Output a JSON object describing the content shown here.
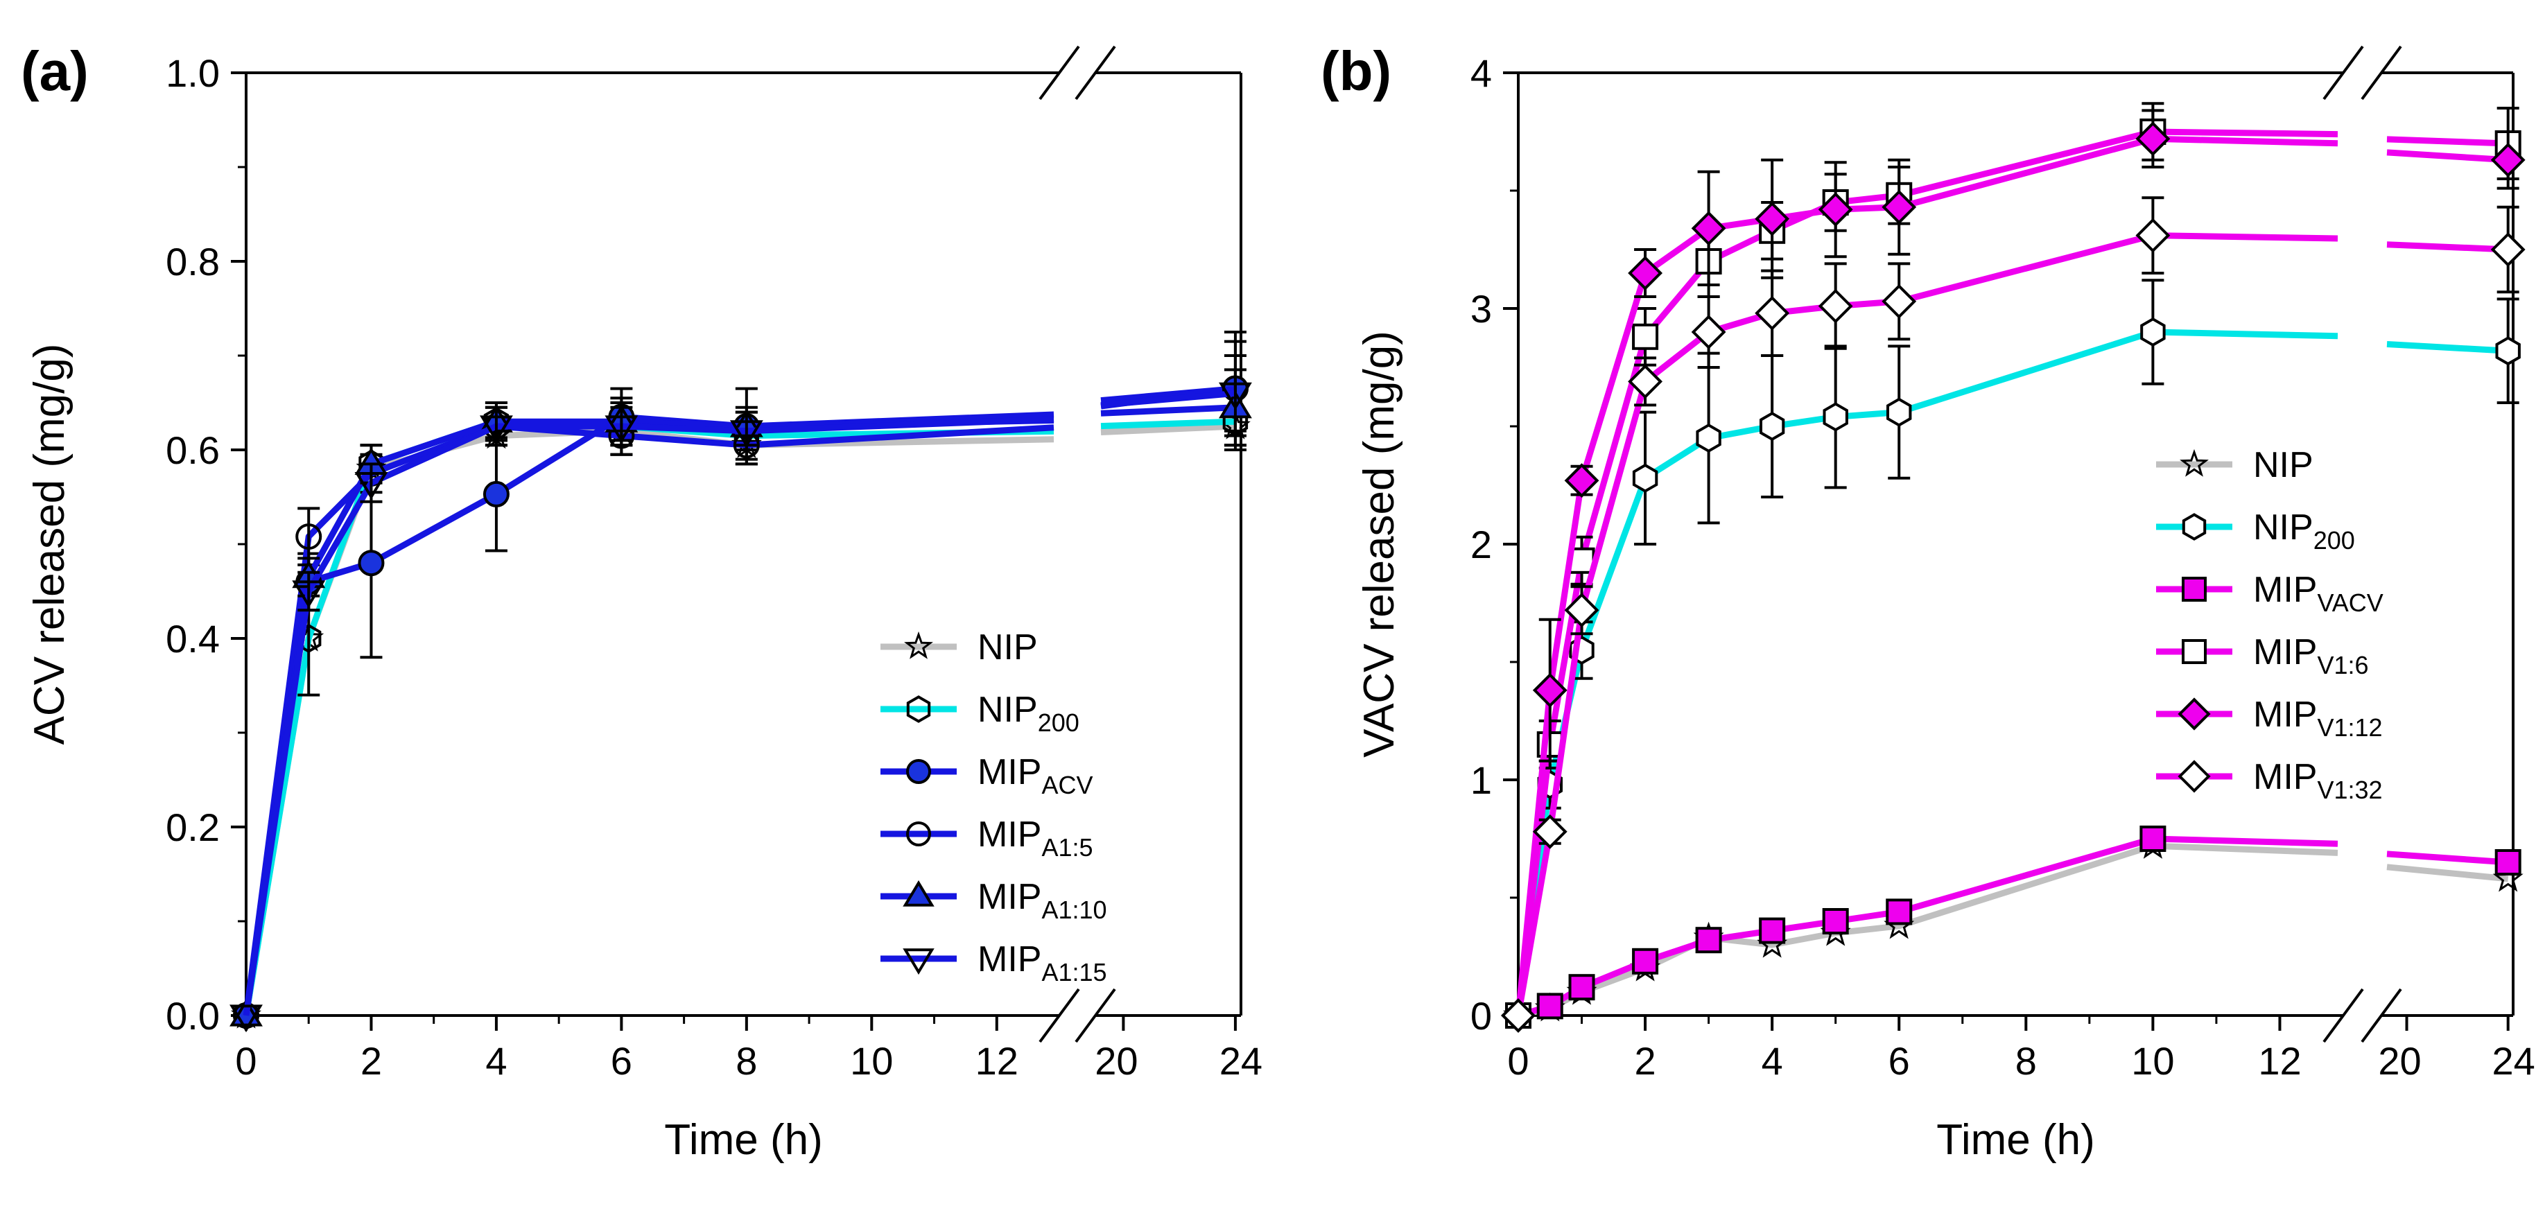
{
  "chart_data": [
    {
      "panel_label": "(a)",
      "type": "line",
      "xlabel": "Time (h)",
      "ylabel": "ACV released (mg/g)",
      "ylim": [
        0,
        1.0
      ],
      "xlim": [
        0,
        24
      ],
      "x_axis_break": [
        13,
        19
      ],
      "xtick_labels": [
        "0",
        "2",
        "4",
        "6",
        "8",
        "10",
        "12",
        "20",
        "24"
      ],
      "ytick_labels": [
        "0.0",
        "0.2",
        "0.4",
        "0.6",
        "0.8",
        "1.0"
      ],
      "legend_position": "bottom-right",
      "series": [
        {
          "name": "NIP",
          "sub": "",
          "color": "#c0c0c0",
          "marker": "star",
          "fill": "none",
          "x": [
            0,
            1,
            2,
            4,
            6,
            8,
            24
          ],
          "y": [
            0,
            0.4,
            0.58,
            0.615,
            0.62,
            0.605,
            0.625
          ]
        },
        {
          "name": "NIP",
          "sub": "200",
          "color": "#00e5e5",
          "marker": "hexagon",
          "fill": "none",
          "x": [
            0,
            1,
            2,
            4,
            6,
            8,
            24
          ],
          "y": [
            0,
            0.4,
            0.585,
            0.63,
            0.625,
            0.615,
            0.63
          ],
          "err": [
            0,
            0.06,
            0.02,
            0.02,
            0.03,
            0.025,
            0.03
          ]
        },
        {
          "name": "MIP",
          "sub": "ACV",
          "color": "#1515e0",
          "marker": "circle",
          "fill": "#1a33dd",
          "x": [
            0,
            1,
            2,
            4,
            6,
            8,
            24
          ],
          "y": [
            0,
            0.46,
            0.48,
            0.553,
            0.635,
            0.625,
            0.665
          ],
          "err": [
            0,
            0.03,
            0.1,
            0.06,
            0.03,
            0.04,
            0.06
          ]
        },
        {
          "name": "MIP",
          "sub": "A1:5",
          "color": "#1515e0",
          "marker": "circle",
          "fill": "none",
          "x": [
            0,
            1,
            2,
            4,
            6,
            8,
            24
          ],
          "y": [
            0,
            0.508,
            0.575,
            0.625,
            0.615,
            0.605,
            0.665
          ],
          "err": [
            0,
            0.03,
            0.02,
            0.02,
            0.02,
            0.02,
            0.05
          ]
        },
        {
          "name": "MIP",
          "sub": "A1:10",
          "color": "#1515e0",
          "marker": "triangle-up",
          "fill": "#1a33dd",
          "x": [
            0,
            1,
            2,
            4,
            6,
            8,
            24
          ],
          "y": [
            0,
            0.465,
            0.585,
            0.63,
            0.63,
            0.625,
            0.645
          ],
          "err": [
            0,
            0.02,
            0.02,
            0.02,
            0.02,
            0.02,
            0.04
          ]
        },
        {
          "name": "MIP",
          "sub": "A1:15",
          "color": "#1515e0",
          "marker": "triangle-down",
          "fill": "none",
          "x": [
            0,
            1,
            2,
            4,
            6,
            8,
            24
          ],
          "y": [
            0,
            0.45,
            0.565,
            0.625,
            0.625,
            0.62,
            0.66
          ],
          "err": [
            0,
            0.02,
            0.02,
            0.02,
            0.02,
            0.02,
            0.04
          ]
        }
      ]
    },
    {
      "panel_label": "(b)",
      "type": "line",
      "xlabel": "Time (h)",
      "ylabel": "VACV released (mg/g)",
      "ylim": [
        0,
        4
      ],
      "xlim": [
        0,
        24
      ],
      "x_axis_break": [
        13,
        19
      ],
      "xtick_labels": [
        "0",
        "2",
        "4",
        "6",
        "8",
        "10",
        "12",
        "20",
        "24"
      ],
      "ytick_labels": [
        "0",
        "1",
        "2",
        "3",
        "4"
      ],
      "legend_position": "right",
      "series": [
        {
          "name": "NIP",
          "sub": "",
          "color": "#c0c0c0",
          "marker": "star",
          "fill": "none",
          "x": [
            0,
            0.5,
            1,
            2,
            3,
            4,
            5,
            6,
            10,
            24
          ],
          "y": [
            0,
            0.03,
            0.1,
            0.2,
            0.33,
            0.3,
            0.35,
            0.38,
            0.72,
            0.58
          ]
        },
        {
          "name": "NIP",
          "sub": "200",
          "color": "#00e5e5",
          "marker": "hexagon",
          "fill": "#ffffff",
          "x": [
            0,
            0.5,
            1,
            2,
            3,
            4,
            5,
            6,
            10,
            24
          ],
          "y": [
            0,
            0.98,
            1.55,
            2.28,
            2.45,
            2.5,
            2.54,
            2.56,
            2.9,
            2.82
          ],
          "err": [
            0,
            0.1,
            0.12,
            0.28,
            0.36,
            0.3,
            0.3,
            0.28,
            0.22,
            0.22
          ]
        },
        {
          "name": "MIP",
          "sub": "VACV",
          "color": "#ee00ee",
          "marker": "square",
          "fill": "#ee00ee",
          "x": [
            0,
            0.5,
            1,
            2,
            3,
            4,
            5,
            6,
            10,
            24
          ],
          "y": [
            0,
            0.04,
            0.12,
            0.23,
            0.32,
            0.36,
            0.4,
            0.44,
            0.75,
            0.65
          ]
        },
        {
          "name": "MIP",
          "sub": "V1:6",
          "color": "#ee00ee",
          "marker": "square",
          "fill": "#ffffff",
          "x": [
            0,
            0.5,
            1,
            2,
            3,
            4,
            5,
            6,
            10,
            24
          ],
          "y": [
            0,
            1.15,
            1.93,
            2.88,
            3.2,
            3.33,
            3.45,
            3.48,
            3.75,
            3.7
          ],
          "err": [
            0,
            0.1,
            0.1,
            0.12,
            0.15,
            0.12,
            0.12,
            0.12,
            0.12,
            0.15
          ]
        },
        {
          "name": "MIP",
          "sub": "V1:12",
          "color": "#ee00ee",
          "marker": "diamond",
          "fill": "#ee00ee",
          "x": [
            0,
            0.5,
            1,
            2,
            3,
            4,
            5,
            6,
            10,
            24
          ],
          "y": [
            0,
            1.38,
            2.27,
            3.15,
            3.34,
            3.38,
            3.42,
            3.43,
            3.72,
            3.63
          ],
          "err": [
            0,
            0.3,
            0.06,
            0.1,
            0.24,
            0.25,
            0.2,
            0.2,
            0.12,
            0.12
          ]
        },
        {
          "name": "MIP",
          "sub": "V1:32",
          "color": "#ee00ee",
          "marker": "diamond",
          "fill": "#ffffff",
          "x": [
            0,
            0.5,
            1,
            2,
            3,
            4,
            5,
            6,
            10,
            24
          ],
          "y": [
            0,
            0.78,
            1.72,
            2.69,
            2.9,
            2.98,
            3.01,
            3.03,
            3.31,
            3.25
          ],
          "err": [
            0,
            0.05,
            0.1,
            0.1,
            0.15,
            0.18,
            0.18,
            0.16,
            0.16,
            0.18
          ]
        }
      ]
    }
  ]
}
